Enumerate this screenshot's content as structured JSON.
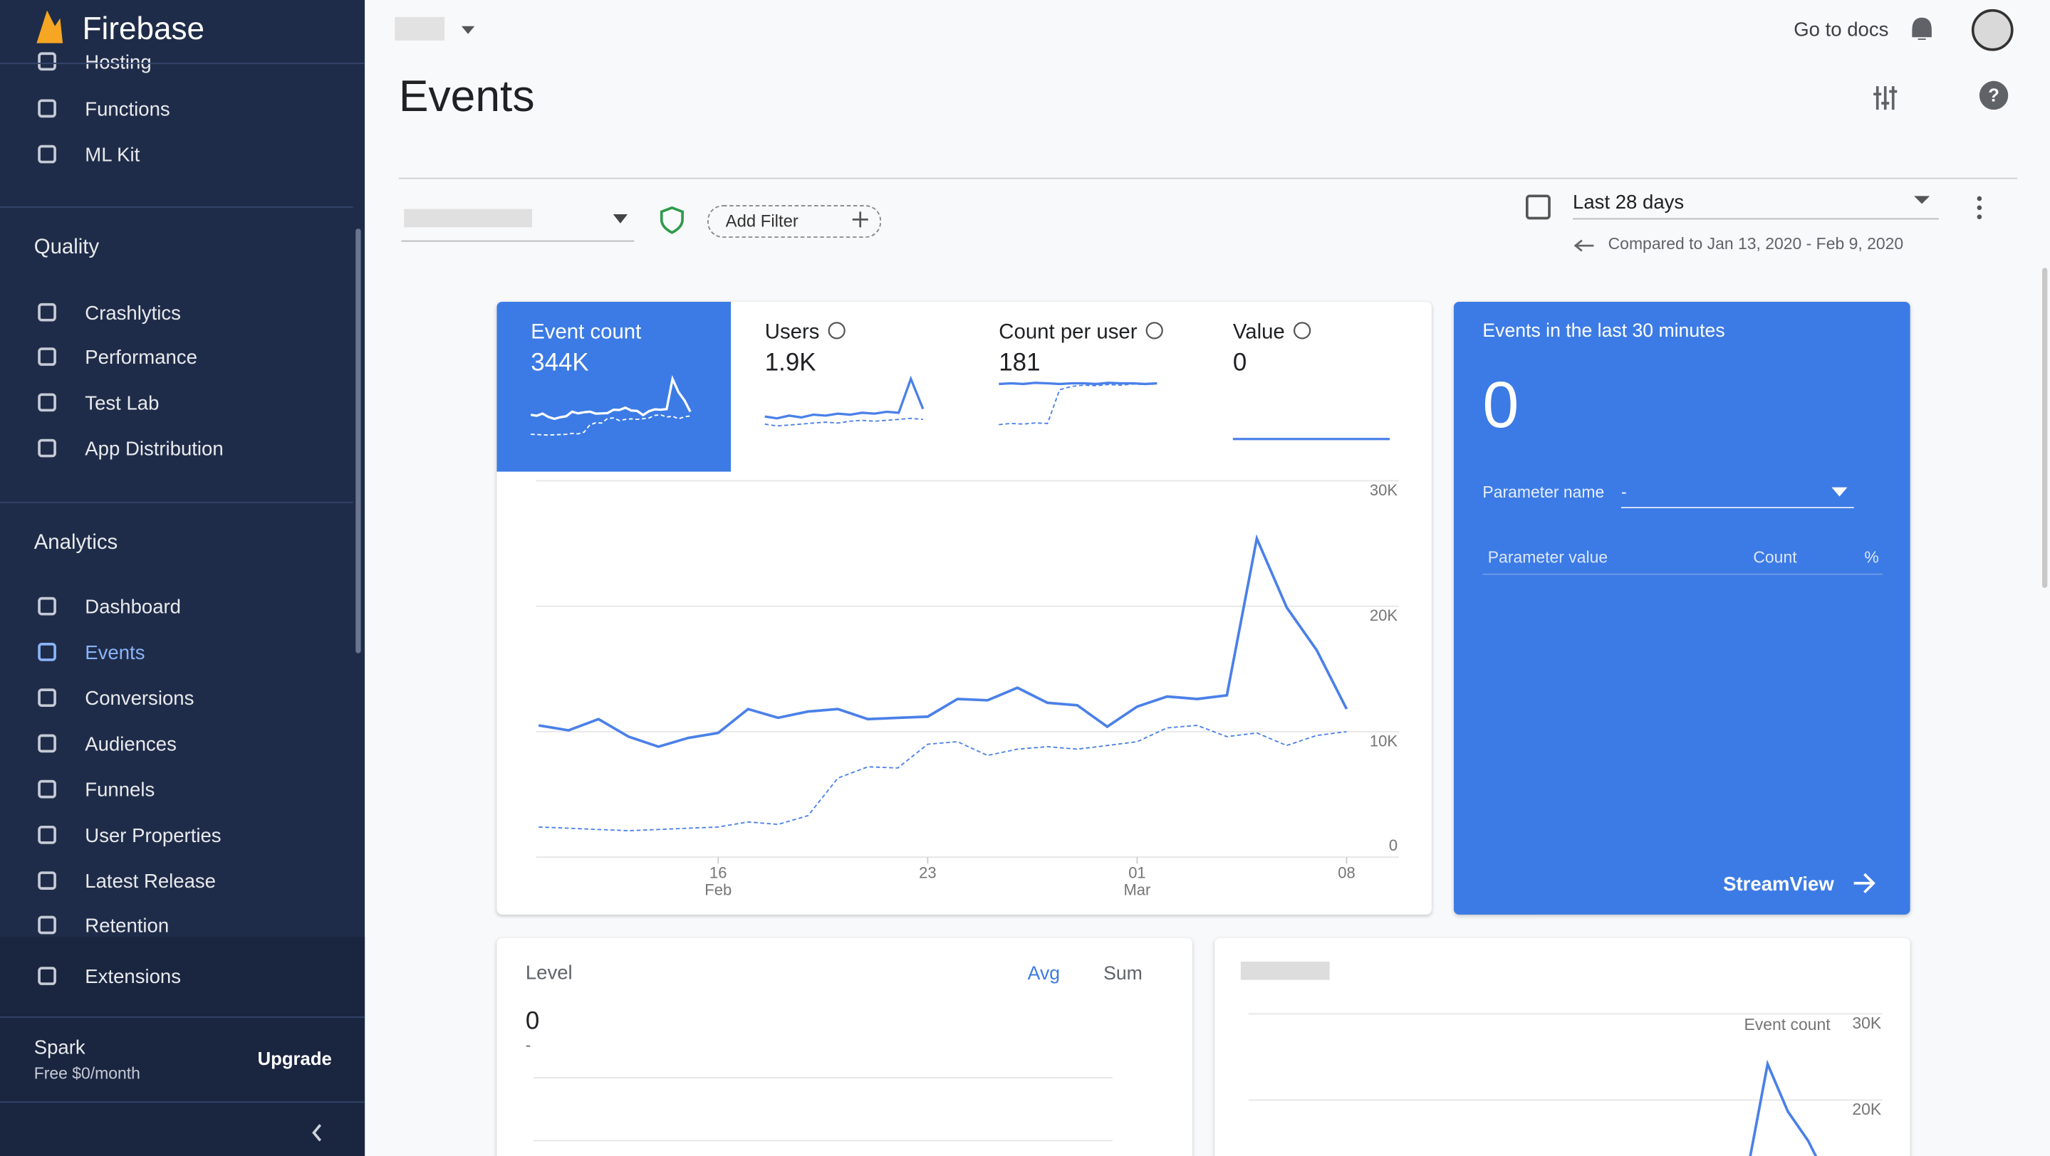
{
  "header": {
    "brand": "Firebase",
    "page_title": "Events",
    "docs_link": "Go to docs"
  },
  "sidebar": {
    "build_items": [
      "Hosting",
      "Functions",
      "ML Kit"
    ],
    "sections": [
      {
        "title": "Quality",
        "items": [
          "Crashlytics",
          "Performance",
          "Test Lab",
          "App Distribution"
        ]
      },
      {
        "title": "Analytics",
        "items": [
          "Dashboard",
          "Events",
          "Conversions",
          "Audiences",
          "Funnels",
          "User Properties",
          "Latest Release",
          "Retention"
        ]
      }
    ],
    "extensions": "Extensions",
    "plan": {
      "name": "Spark",
      "price": "Free $0/month",
      "action": "Upgrade"
    }
  },
  "filters": {
    "add_filter": "Add Filter",
    "date_range": "Last 28 days",
    "comparison": "Compared to Jan 13, 2020 - Feb 9, 2020"
  },
  "metrics": {
    "tabs": [
      {
        "label": "Event count",
        "value": "344K"
      },
      {
        "label": "Users",
        "value": "1.9K",
        "spark": {
          "current": [
            70,
            68,
            71,
            69,
            72,
            71,
            73,
            72,
            74,
            73,
            75,
            74,
            110,
            78
          ],
          "previous": [
            62,
            60,
            61,
            62,
            63,
            64,
            63,
            65,
            66,
            65,
            66,
            67,
            68,
            67
          ]
        }
      },
      {
        "label": "Count per user",
        "value": "181",
        "spark": {
          "current": [
            180,
            181,
            180,
            182,
            181,
            180,
            181,
            181,
            180,
            182,
            181,
            181,
            180,
            181
          ],
          "previous": [
            110,
            112,
            111,
            113,
            112,
            170,
            176,
            178,
            177,
            179,
            178,
            180,
            179,
            180
          ]
        }
      },
      {
        "label": "Value",
        "value": "0",
        "spark": {
          "current": [
            0,
            0,
            0,
            0,
            0,
            0,
            0,
            0,
            0,
            0,
            0,
            0,
            0,
            0
          ]
        }
      }
    ]
  },
  "chart_data": {
    "type": "line",
    "x": [
      0,
      1,
      2,
      3,
      4,
      5,
      6,
      7,
      8,
      9,
      10,
      11,
      12,
      13,
      14,
      15,
      16,
      17,
      18,
      19,
      20,
      21,
      22,
      23,
      24,
      25,
      26,
      27
    ],
    "series": [
      {
        "color": "#4a80e8",
        "dashed": false,
        "values": [
          10500,
          10100,
          11000,
          9600,
          8800,
          9500,
          9900,
          11800,
          11100,
          11600,
          11800,
          11000,
          11100,
          11200,
          12600,
          12500,
          13500,
          12300,
          12100,
          10400,
          12000,
          12800,
          12600,
          12900,
          25400,
          19900,
          16500,
          11800
        ]
      },
      {
        "color": "#4a80e8",
        "dashed": true,
        "values": [
          2400,
          2300,
          2200,
          2100,
          2200,
          2300,
          2400,
          2800,
          2600,
          3300,
          6300,
          7200,
          7100,
          9000,
          9200,
          8100,
          8600,
          8800,
          8600,
          8900,
          9200,
          10300,
          10500,
          9600,
          9900,
          8900,
          9700,
          10000
        ]
      }
    ],
    "xlim": [
      0,
      27
    ],
    "xticks": [
      {
        "value": 6,
        "label": "16"
      },
      {
        "value": 13,
        "label": "23"
      },
      {
        "value": 20,
        "label": "01"
      },
      {
        "value": 27,
        "label": "08"
      }
    ],
    "xtick_months": [
      {
        "value": 6,
        "label": "Feb"
      },
      {
        "value": 20,
        "label": "Mar"
      }
    ],
    "ylim": [
      0,
      30000
    ],
    "yticks": [
      0,
      {
        "value": 10000,
        "label": "10K"
      },
      {
        "value": 20000,
        "label": "20K"
      },
      {
        "value": 30000,
        "label": "30K"
      }
    ],
    "grid": true
  },
  "realtime": {
    "title": "Events in the last 30 minutes",
    "count": "0",
    "param_name_label": "Parameter name",
    "param_name_value": "-",
    "columns": [
      "Parameter value",
      "Count",
      "%"
    ],
    "action": "StreamView"
  },
  "level_card": {
    "title": "Level",
    "toggles": [
      "Avg",
      "Sum"
    ],
    "value": "0",
    "sub": "-"
  },
  "bottom_chart": {
    "series_label": "Event count",
    "ylim": [
      0,
      30000
    ],
    "yticks": [
      {
        "value": 30000,
        "label": "30K"
      },
      {
        "value": 20000,
        "label": "20K"
      }
    ]
  }
}
